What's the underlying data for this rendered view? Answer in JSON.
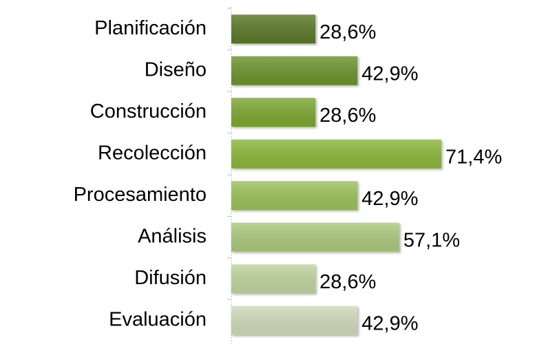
{
  "chart_data": {
    "type": "bar",
    "orientation": "horizontal",
    "categories": [
      "Planificación",
      "Diseño",
      "Construcción",
      "Recolección",
      "Procesamiento",
      "Análisis",
      "Difusión",
      "Evaluación"
    ],
    "values": [
      28.6,
      42.9,
      28.6,
      71.4,
      42.9,
      57.1,
      28.6,
      42.9
    ],
    "value_labels": [
      "28,6%",
      "42,9%",
      "28,6%",
      "71,4%",
      "42,9%",
      "57,1%",
      "28,6%",
      "42,9%"
    ],
    "colors": [
      "#5b7a2c",
      "#6e952e",
      "#7ea833",
      "#8cb83b",
      "#9cc25a",
      "#acca7d",
      "#c0d59f",
      "#d0dbbb"
    ]
  }
}
